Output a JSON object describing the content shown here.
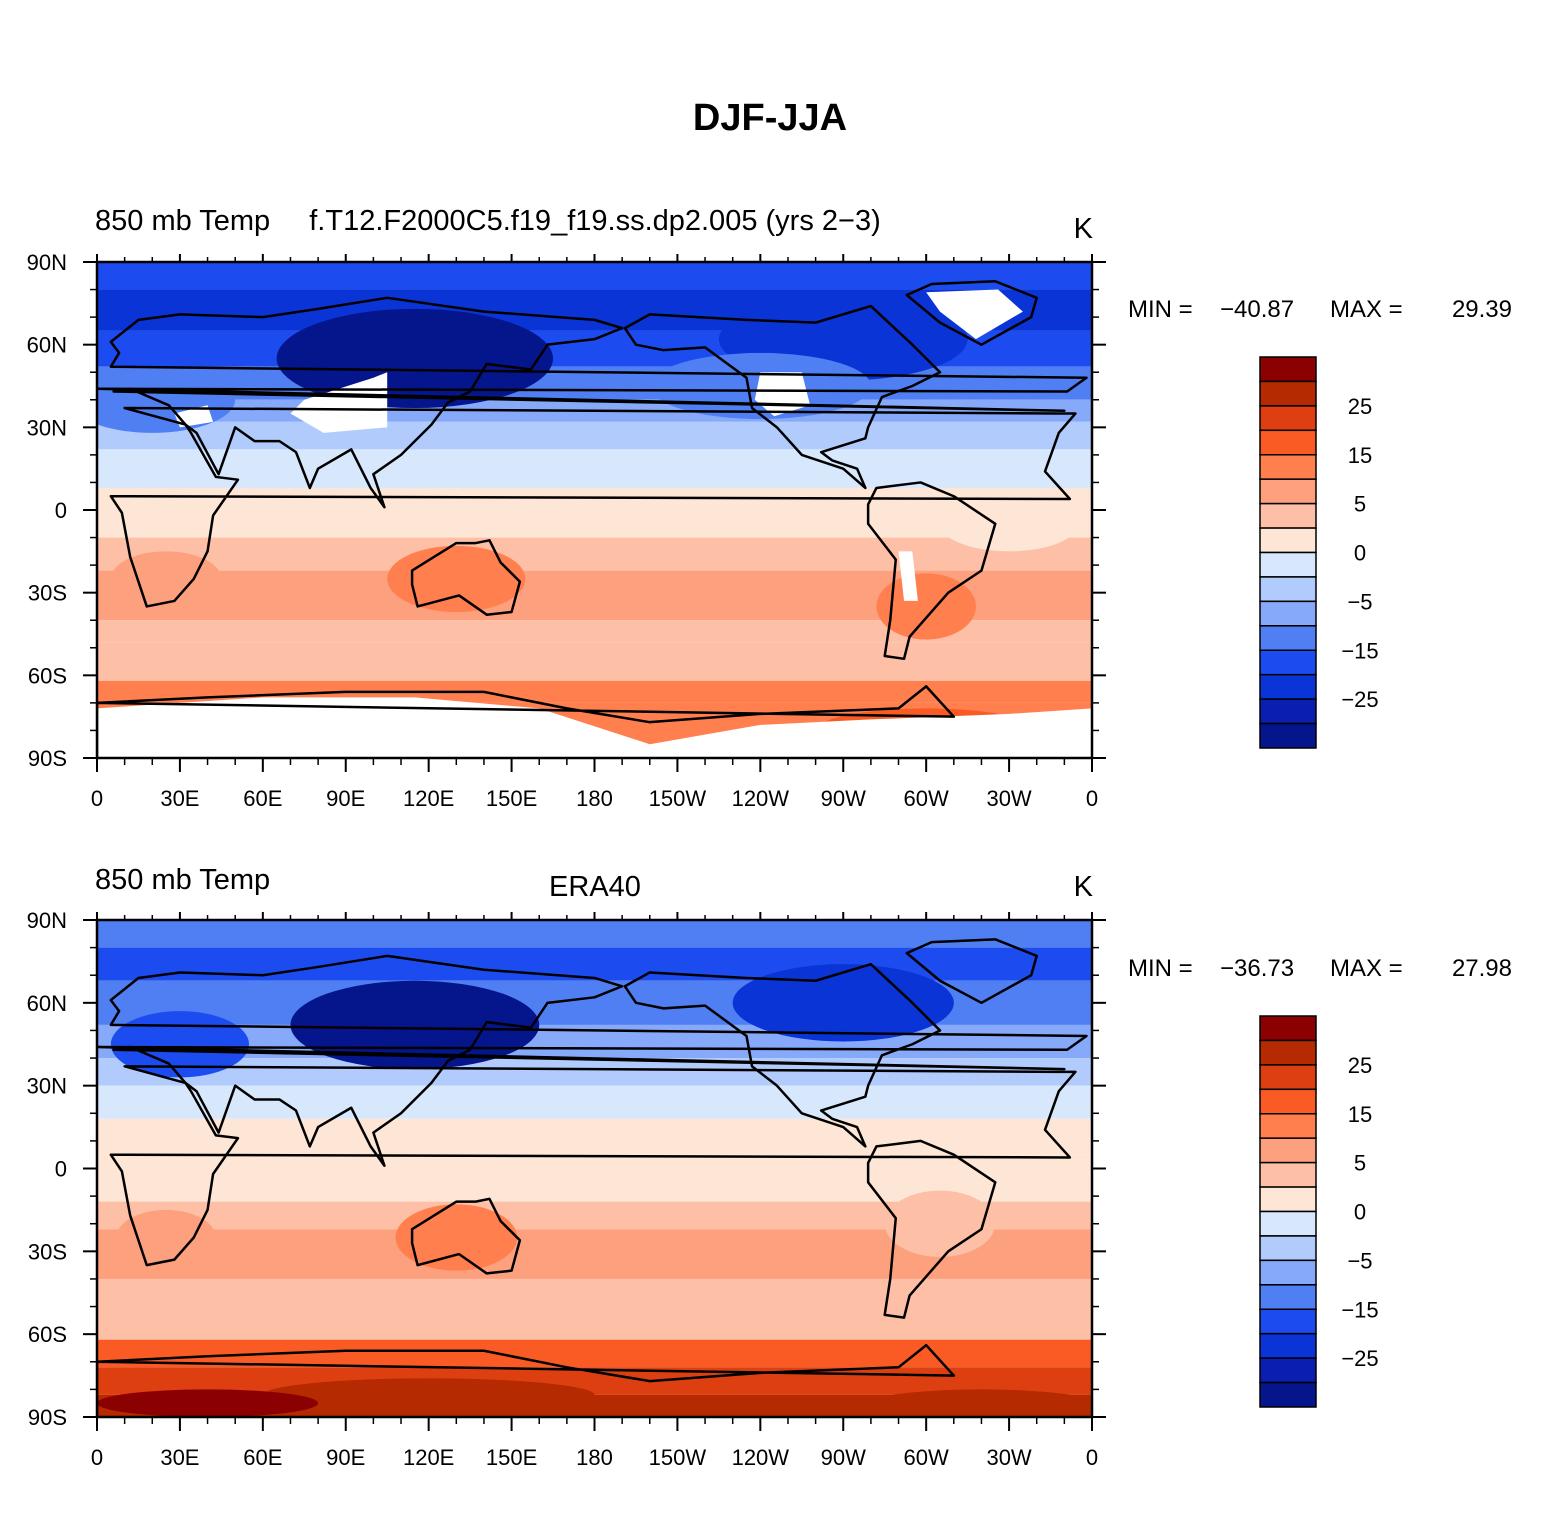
{
  "figure": {
    "title": "DJF-JJA"
  },
  "chart_data": [
    {
      "type": "heatmap",
      "left_label": "850 mb Temp",
      "center_label": "f.T12.F2000C5.f19_f19.ss.dp2.005 (yrs 2−3)",
      "units": "K",
      "xlim": [
        0,
        360
      ],
      "ylim": [
        -90,
        90
      ],
      "x_ticks": [
        "0",
        "30E",
        "60E",
        "90E",
        "120E",
        "150E",
        "180",
        "150W",
        "120W",
        "90W",
        "60W",
        "30W",
        "0"
      ],
      "y_ticks": [
        "90N",
        "60N",
        "30N",
        "0",
        "30S",
        "60S",
        "90S"
      ],
      "stats": {
        "min_label": "MIN =",
        "min": "−40.87",
        "max_label": "MAX =",
        "max": "29.39"
      },
      "colorbar": {
        "labels": [
          "25",
          "15",
          "5",
          "0",
          "−5",
          "−15",
          "−25"
        ],
        "colors": [
          "#8b0000",
          "#b52a00",
          "#dd3f10",
          "#fa5a23",
          "#ff7f4f",
          "#fda07e",
          "#fdbfa5",
          "#fee6d6",
          "#d7e8fd",
          "#b1cbfd",
          "#86a9fa",
          "#4f7ff3",
          "#1c4cf0",
          "#0a34d6",
          "#0a1fb0",
          "#05158c"
        ]
      }
    },
    {
      "type": "heatmap",
      "left_label": "850 mb Temp",
      "center_label": "ERA40",
      "units": "K",
      "xlim": [
        0,
        360
      ],
      "ylim": [
        -90,
        90
      ],
      "x_ticks": [
        "0",
        "30E",
        "60E",
        "90E",
        "120E",
        "150E",
        "180",
        "150W",
        "120W",
        "90W",
        "60W",
        "30W",
        "0"
      ],
      "y_ticks": [
        "90N",
        "60N",
        "30N",
        "0",
        "30S",
        "60S",
        "90S"
      ],
      "stats": {
        "min_label": "MIN =",
        "min": "−36.73",
        "max_label": "MAX =",
        "max": "27.98"
      },
      "colorbar": {
        "labels": [
          "25",
          "15",
          "5",
          "0",
          "−5",
          "−15",
          "−25"
        ],
        "colors": [
          "#8b0000",
          "#b52a00",
          "#dd3f10",
          "#fa5a23",
          "#ff7f4f",
          "#fda07e",
          "#fdbfa5",
          "#fee6d6",
          "#d7e8fd",
          "#b1cbfd",
          "#86a9fa",
          "#4f7ff3",
          "#1c4cf0",
          "#0a34d6",
          "#0a1fb0",
          "#05158c"
        ]
      }
    }
  ]
}
